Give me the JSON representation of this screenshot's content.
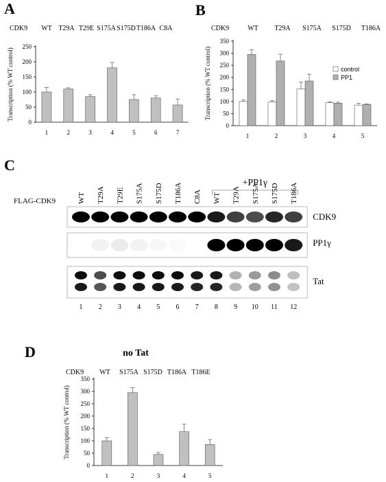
{
  "panels": {
    "A": {
      "letter": "A"
    },
    "B": {
      "letter": "B"
    },
    "C": {
      "letter": "C"
    },
    "D": {
      "letter": "D"
    }
  },
  "chart_data": [
    {
      "id": "A",
      "type": "bar",
      "header_label": "CDK9",
      "mutants": [
        "WT",
        "T29A",
        "T29E",
        "S175A",
        "S175D",
        "T186A",
        "C8A"
      ],
      "categories": [
        "1",
        "2",
        "3",
        "4",
        "5",
        "6",
        "7"
      ],
      "values": [
        100,
        110,
        85,
        180,
        75,
        80,
        57
      ],
      "errors": [
        15,
        4,
        6,
        18,
        16,
        7,
        20
      ],
      "ylabel": "Transcription (% WT control)",
      "ylim": [
        0,
        250
      ],
      "yticks": [
        0,
        50,
        100,
        150,
        200,
        250
      ],
      "bar_color": "#c0c0c0"
    },
    {
      "id": "B",
      "type": "bar",
      "header_label": "CDK9",
      "mutants": [
        "WT",
        "T29A",
        "S175A",
        "S175D",
        "T186A"
      ],
      "categories": [
        "1",
        "2",
        "3",
        "4",
        "5"
      ],
      "series": [
        {
          "name": "control",
          "values": [
            100,
            98,
            152,
            95,
            85
          ],
          "errors": [
            6,
            6,
            28,
            4,
            8
          ],
          "color": "#ffffff"
        },
        {
          "name": "PP1",
          "values": [
            295,
            268,
            185,
            93,
            88
          ],
          "errors": [
            20,
            28,
            28,
            4,
            2
          ],
          "color": "#b0b0b0"
        }
      ],
      "ylabel": "Transcription (% WT control)",
      "ylim": [
        0,
        350
      ],
      "yticks": [
        0,
        50,
        100,
        150,
        200,
        250,
        300,
        350
      ],
      "legend_position": "right"
    },
    {
      "id": "D",
      "type": "bar",
      "title": "no Tat",
      "header_label": "CDK9",
      "mutants": [
        "WT",
        "S175A",
        "S175D",
        "T186A",
        "T186E"
      ],
      "categories": [
        "1",
        "2",
        "3",
        "4",
        "5"
      ],
      "values": [
        100,
        295,
        45,
        137,
        85
      ],
      "errors": [
        12,
        20,
        8,
        30,
        20
      ],
      "ylabel": "Transcription (% WT control)",
      "ylim": [
        0,
        350
      ],
      "yticks": [
        0,
        50,
        100,
        150,
        200,
        250,
        300,
        350
      ],
      "bar_color": "#c0c0c0"
    }
  ],
  "blot": {
    "pp1_header": "+PP1γ",
    "row_label": "FLAG-CDK9",
    "lane_labels": [
      "WT",
      "T29A",
      "T29E",
      "S175A",
      "S175D",
      "T186A",
      "C8A",
      "WT",
      "T29A",
      "S175A",
      "S175D",
      "T186A"
    ],
    "lane_numbers": [
      "1",
      "2",
      "3",
      "4",
      "5",
      "6",
      "7",
      "8",
      "9",
      "10",
      "11",
      "12"
    ],
    "band_labels": [
      "CDK9",
      "PP1γ",
      "Tat"
    ],
    "cdk9_intensity": [
      1.0,
      1.0,
      1.0,
      1.0,
      1.0,
      1.0,
      1.0,
      0.9,
      0.75,
      0.7,
      0.85,
      0.75
    ],
    "pp1_intensity": [
      0,
      0.05,
      0.08,
      0.05,
      0.03,
      0.02,
      0,
      1.0,
      1.0,
      1.0,
      1.0,
      0.9
    ],
    "tat_intensity": [
      0.95,
      0.7,
      0.95,
      0.95,
      0.95,
      0.95,
      0.9,
      0.9,
      0.3,
      0.4,
      0.45,
      0.25
    ]
  }
}
